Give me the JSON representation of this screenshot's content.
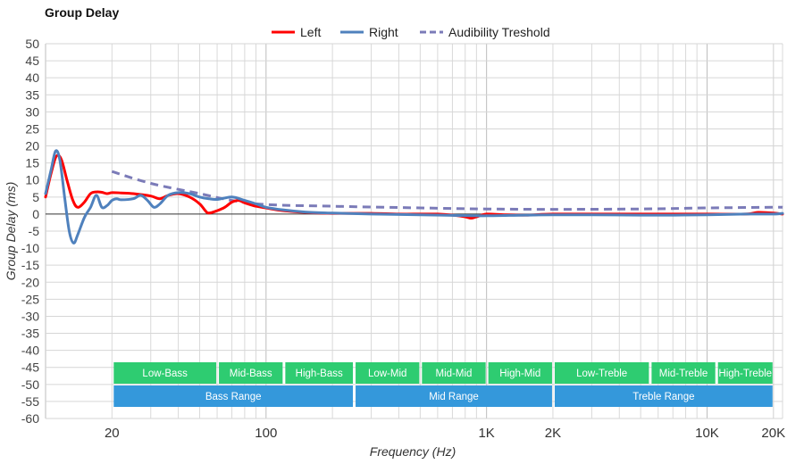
{
  "chart_data": {
    "type": "line",
    "title": "Group Delay",
    "xlabel": "Frequency (Hz)",
    "ylabel": "Group Delay (ms)",
    "x_scale": "log",
    "xlim": [
      10,
      22000
    ],
    "ylim": [
      -60,
      50
    ],
    "y_ticks": [
      50,
      45,
      40,
      35,
      30,
      25,
      20,
      15,
      10,
      5,
      0,
      -5,
      -10,
      -15,
      -20,
      -25,
      -30,
      -35,
      -40,
      -45,
      -50,
      -55,
      -60
    ],
    "x_ticks": [
      {
        "value": 20,
        "label": "20"
      },
      {
        "value": 100,
        "label": "100"
      },
      {
        "value": 1000,
        "label": "1K"
      },
      {
        "value": 2000,
        "label": "2K"
      },
      {
        "value": 10000,
        "label": "10K"
      },
      {
        "value": 20000,
        "label": "20K"
      }
    ],
    "grid": true,
    "legend_position": "top-center",
    "series": [
      {
        "name": "Left",
        "color": "#ff0000",
        "style": "solid",
        "points": [
          [
            10,
            5
          ],
          [
            10.6,
            12
          ],
          [
            11.2,
            17
          ],
          [
            11.8,
            16
          ],
          [
            12.5,
            10
          ],
          [
            13.3,
            4
          ],
          [
            14,
            2
          ],
          [
            15,
            3.5
          ],
          [
            16,
            6
          ],
          [
            17,
            6.5
          ],
          [
            18,
            6.4
          ],
          [
            19,
            6
          ],
          [
            20,
            6.3
          ],
          [
            22,
            6.2
          ],
          [
            25,
            6
          ],
          [
            30,
            5.3
          ],
          [
            33,
            4.5
          ],
          [
            36,
            5.5
          ],
          [
            40,
            6
          ],
          [
            45,
            5
          ],
          [
            50,
            3
          ],
          [
            53,
            1
          ],
          [
            55,
            0.3
          ],
          [
            60,
            1
          ],
          [
            65,
            2
          ],
          [
            70,
            3.5
          ],
          [
            75,
            4
          ],
          [
            80,
            3.3
          ],
          [
            90,
            2.3
          ],
          [
            100,
            1.8
          ],
          [
            120,
            1
          ],
          [
            150,
            0.5
          ],
          [
            200,
            0.2
          ],
          [
            300,
            0.2
          ],
          [
            400,
            0
          ],
          [
            500,
            0
          ],
          [
            600,
            0
          ],
          [
            700,
            -0.3
          ],
          [
            800,
            -0.8
          ],
          [
            850,
            -1.2
          ],
          [
            900,
            -0.8
          ],
          [
            1000,
            0
          ],
          [
            1200,
            -0.2
          ],
          [
            1500,
            -0.3
          ],
          [
            2000,
            0
          ],
          [
            3000,
            0
          ],
          [
            5000,
            0
          ],
          [
            7000,
            0
          ],
          [
            10000,
            0
          ],
          [
            15000,
            0
          ],
          [
            17000,
            0.5
          ],
          [
            20000,
            0.3
          ],
          [
            22000,
            0
          ]
        ]
      },
      {
        "name": "Right",
        "color": "#4f81bd",
        "style": "solid",
        "points": [
          [
            10,
            6
          ],
          [
            10.6,
            13
          ],
          [
            11.1,
            18.5
          ],
          [
            11.6,
            16
          ],
          [
            12.2,
            5
          ],
          [
            12.8,
            -5
          ],
          [
            13.4,
            -8.5
          ],
          [
            14,
            -6
          ],
          [
            15,
            -1
          ],
          [
            16,
            2
          ],
          [
            17,
            5.5
          ],
          [
            18,
            2
          ],
          [
            19,
            2.5
          ],
          [
            20,
            4
          ],
          [
            21,
            4.5
          ],
          [
            22,
            4.2
          ],
          [
            25,
            4.5
          ],
          [
            27,
            5.5
          ],
          [
            29,
            4
          ],
          [
            31,
            2
          ],
          [
            33,
            3
          ],
          [
            36,
            5.5
          ],
          [
            40,
            6.3
          ],
          [
            45,
            6
          ],
          [
            50,
            5
          ],
          [
            55,
            4.5
          ],
          [
            60,
            4.3
          ],
          [
            70,
            5
          ],
          [
            80,
            4
          ],
          [
            90,
            3
          ],
          [
            100,
            2
          ],
          [
            120,
            1.2
          ],
          [
            150,
            0.6
          ],
          [
            200,
            0.3
          ],
          [
            300,
            0
          ],
          [
            500,
            -0.2
          ],
          [
            700,
            -0.4
          ],
          [
            1000,
            -0.5
          ],
          [
            1500,
            -0.3
          ],
          [
            2000,
            -0.2
          ],
          [
            3000,
            -0.2
          ],
          [
            5000,
            -0.3
          ],
          [
            7000,
            -0.3
          ],
          [
            10000,
            -0.2
          ],
          [
            15000,
            0
          ],
          [
            20000,
            0
          ],
          [
            22000,
            0.2
          ]
        ]
      },
      {
        "name": "Audibility Treshold",
        "color": "#7b7bb8",
        "style": "dashed",
        "points": [
          [
            20,
            12.5
          ],
          [
            30,
            9
          ],
          [
            50,
            6
          ],
          [
            70,
            4
          ],
          [
            100,
            2.8
          ],
          [
            200,
            2.3
          ],
          [
            500,
            1.8
          ],
          [
            1000,
            1.5
          ],
          [
            2000,
            1.4
          ],
          [
            5000,
            1.5
          ],
          [
            10000,
            1.8
          ],
          [
            20000,
            2
          ],
          [
            22000,
            2
          ]
        ]
      }
    ]
  },
  "ranges": {
    "top_row": [
      {
        "label": "Low-Bass",
        "from": 20,
        "to": 60
      },
      {
        "label": "Mid-Bass",
        "from": 60,
        "to": 120
      },
      {
        "label": "High-Bass",
        "from": 120,
        "to": 250
      },
      {
        "label": "Low-Mid",
        "from": 250,
        "to": 500
      },
      {
        "label": "Mid-Mid",
        "from": 500,
        "to": 1000
      },
      {
        "label": "High-Mid",
        "from": 1000,
        "to": 2000
      },
      {
        "label": "Low-Treble",
        "from": 2000,
        "to": 5500
      },
      {
        "label": "Mid-Treble",
        "from": 5500,
        "to": 11000
      },
      {
        "label": "High-Treble",
        "from": 11000,
        "to": 20000
      }
    ],
    "bottom_row": [
      {
        "label": "Bass Range",
        "from": 20,
        "to": 250
      },
      {
        "label": "Mid Range",
        "from": 250,
        "to": 2000
      },
      {
        "label": "Treble Range",
        "from": 2000,
        "to": 20000
      }
    ],
    "top_color": "#2ecc71",
    "bottom_color": "#3498db"
  }
}
